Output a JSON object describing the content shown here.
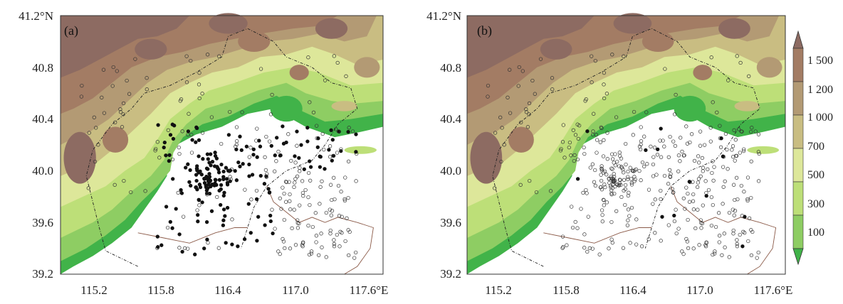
{
  "panels": [
    {
      "label": "(a)",
      "y_ticks": [
        "41.2°N",
        "40.8",
        "40.4",
        "40.0",
        "39.6",
        "39.2"
      ],
      "x_ticks": [
        "115.2",
        "115.8",
        "116.4",
        "117.0",
        "117.6°E"
      ],
      "station_style": "mixed-filled-open"
    },
    {
      "label": "(b)",
      "y_ticks": [
        "41.2°N",
        "40.8",
        "40.4",
        "40.0",
        "39.6",
        "39.2"
      ],
      "x_ticks": [
        "115.2",
        "115.8",
        "116.4",
        "117.0",
        "117.6°E"
      ],
      "station_style": "mostly-open"
    }
  ],
  "extent": {
    "lon": [
      114.96,
      117.84
    ],
    "lat": [
      39.2,
      41.2
    ]
  },
  "colorbar": {
    "levels": [
      "1 500",
      "1 200",
      "1 000",
      "700",
      "500",
      "300",
      "100"
    ],
    "colors": [
      "#8d6b62",
      "#a37c64",
      "#b39a74",
      "#c9bd82",
      "#dde79a",
      "#bddf78",
      "#8ecd63",
      "#41b349"
    ]
  }
}
